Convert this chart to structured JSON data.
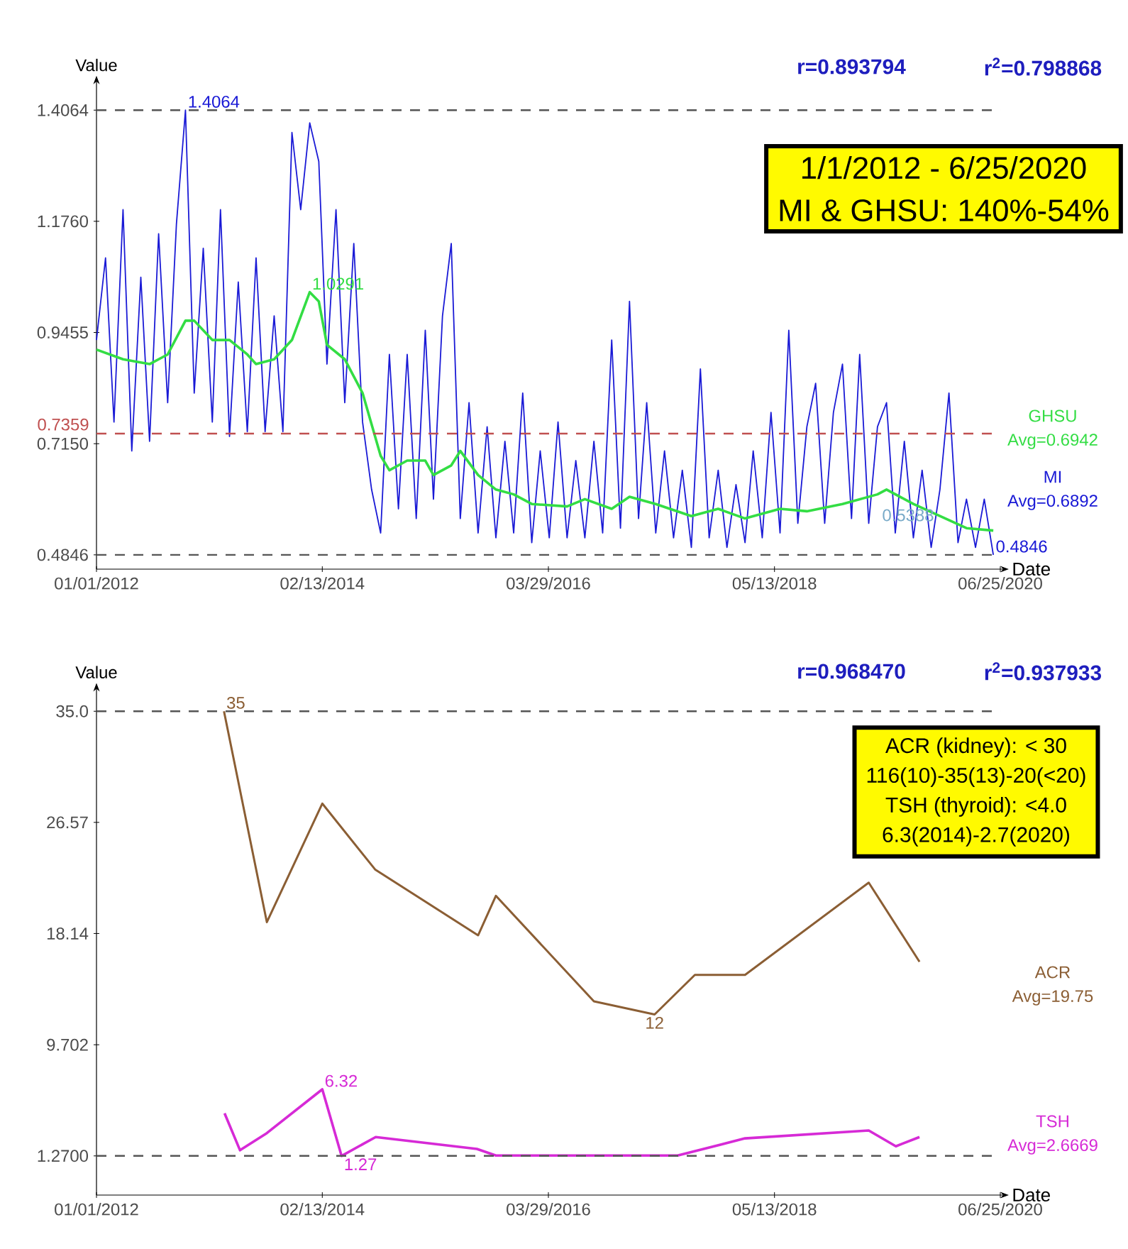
{
  "chart_data": [
    {
      "type": "line",
      "ylabel": "Value",
      "xlabel": "Date",
      "legend": false,
      "xlim": [
        "2012-01-01",
        "2020-06-25"
      ],
      "ylim": [
        0.455,
        1.46
      ],
      "xticks": [
        {
          "value": "2012-01-01",
          "label": "01/01/2012"
        },
        {
          "value": "2014-02-13",
          "label": "02/13/2014"
        },
        {
          "value": "2016-03-29",
          "label": "03/29/2016"
        },
        {
          "value": "2018-05-13",
          "label": "05/13/2018"
        },
        {
          "value": "2020-06-25",
          "label": "06/25/2020"
        }
      ],
      "yticks": [
        0.4846,
        {
          "value": 0.715,
          "label": "0.7150"
        },
        0.9455,
        {
          "value": 1.176,
          "label": "1.1760"
        },
        1.4064
      ],
      "series": [
        {
          "name": "MI",
          "color": "#1a1ad6",
          "x": [
            "2012-01",
            "2012-02",
            "2012-03",
            "2012-04",
            "2012-05",
            "2012-06",
            "2012-07",
            "2012-08",
            "2012-09",
            "2012-10",
            "2012-11",
            "2012-12",
            "2013-01",
            "2013-02",
            "2013-03",
            "2013-04",
            "2013-05",
            "2013-06",
            "2013-07",
            "2013-08",
            "2013-09",
            "2013-10",
            "2013-11",
            "2013-12",
            "2014-01",
            "2014-02",
            "2014-03",
            "2014-04",
            "2014-05",
            "2014-06",
            "2014-07",
            "2014-08",
            "2014-09",
            "2014-10",
            "2014-11",
            "2014-12",
            "2015-01",
            "2015-02",
            "2015-03",
            "2015-04",
            "2015-05",
            "2015-06",
            "2015-07",
            "2015-08",
            "2015-09",
            "2015-10",
            "2015-11",
            "2015-12",
            "2016-01",
            "2016-02",
            "2016-03",
            "2016-04",
            "2016-05",
            "2016-06",
            "2016-07",
            "2016-08",
            "2016-09",
            "2016-10",
            "2016-11",
            "2016-12",
            "2017-01",
            "2017-02",
            "2017-03",
            "2017-04",
            "2017-05",
            "2017-06",
            "2017-07",
            "2017-08",
            "2017-09",
            "2017-10",
            "2017-11",
            "2017-12",
            "2018-01",
            "2018-02",
            "2018-03",
            "2018-04",
            "2018-05",
            "2018-06",
            "2018-07",
            "2018-08",
            "2018-09",
            "2018-10",
            "2018-11",
            "2018-12",
            "2019-01",
            "2019-02",
            "2019-03",
            "2019-04",
            "2019-05",
            "2019-06",
            "2019-07",
            "2019-08",
            "2019-09",
            "2019-10",
            "2019-11",
            "2019-12",
            "2020-01",
            "2020-02",
            "2020-03",
            "2020-04",
            "2020-05",
            "2020-06"
          ],
          "values": [
            0.93,
            1.1,
            0.76,
            1.2,
            0.7,
            1.06,
            0.72,
            1.15,
            0.8,
            1.17,
            1.4064,
            0.82,
            1.12,
            0.76,
            1.2,
            0.73,
            1.05,
            0.74,
            1.1,
            0.74,
            0.98,
            0.74,
            1.36,
            1.2,
            1.38,
            1.3,
            0.88,
            1.2,
            0.8,
            1.13,
            0.76,
            0.62,
            0.53,
            0.9,
            0.58,
            0.9,
            0.56,
            0.95,
            0.6,
            0.98,
            1.13,
            0.56,
            0.8,
            0.53,
            0.75,
            0.52,
            0.72,
            0.53,
            0.82,
            0.51,
            0.7,
            0.52,
            0.76,
            0.52,
            0.68,
            0.52,
            0.72,
            0.53,
            0.93,
            0.54,
            1.01,
            0.56,
            0.8,
            0.53,
            0.7,
            0.52,
            0.66,
            0.5,
            0.87,
            0.52,
            0.66,
            0.5,
            0.63,
            0.51,
            0.7,
            0.52,
            0.78,
            0.53,
            0.95,
            0.55,
            0.75,
            0.84,
            0.55,
            0.78,
            0.88,
            0.56,
            0.9,
            0.55,
            0.75,
            0.8,
            0.53,
            0.72,
            0.52,
            0.66,
            0.5,
            0.62,
            0.82,
            0.51,
            0.6,
            0.5,
            0.6,
            0.4846
          ]
        },
        {
          "name": "GHSU",
          "color": "#33dd44",
          "x": [
            "2012-01",
            "2012-04",
            "2012-07",
            "2012-09",
            "2012-11",
            "2012-12",
            "2013-02",
            "2013-04",
            "2013-06",
            "2013-07",
            "2013-09",
            "2013-11",
            "2014-01",
            "2014-02",
            "2014-03",
            "2014-05",
            "2014-07",
            "2014-09",
            "2014-10",
            "2014-12",
            "2015-02",
            "2015-03",
            "2015-05",
            "2015-06",
            "2015-08",
            "2015-10",
            "2015-12",
            "2016-02",
            "2016-06",
            "2016-08",
            "2016-11",
            "2017-01",
            "2017-04",
            "2017-08",
            "2017-11",
            "2018-02",
            "2018-06",
            "2018-09",
            "2019-01",
            "2019-05",
            "2019-06",
            "2019-09",
            "2019-12",
            "2020-03",
            "2020-06"
          ],
          "values": [
            0.91,
            0.89,
            0.88,
            0.9,
            0.97,
            0.97,
            0.93,
            0.93,
            0.9,
            0.88,
            0.89,
            0.93,
            1.0291,
            1.01,
            0.92,
            0.89,
            0.82,
            0.69,
            0.66,
            0.68,
            0.68,
            0.65,
            0.67,
            0.7,
            0.65,
            0.62,
            0.61,
            0.59,
            0.585,
            0.6,
            0.58,
            0.605,
            0.59,
            0.565,
            0.58,
            0.56,
            0.58,
            0.575,
            0.59,
            0.61,
            0.62,
            0.59,
            0.565,
            0.54,
            0.535
          ]
        }
      ],
      "ref_lines": [
        {
          "axis": "y",
          "value": 1.4064,
          "color": "#555555",
          "line_style": "dashed"
        },
        {
          "axis": "y",
          "value": 0.7359,
          "label": "0.7359",
          "color": "#c05050",
          "line_style": "dashed"
        },
        {
          "axis": "y",
          "value": 0.4846,
          "color": "#555555",
          "line_style": "dashed"
        }
      ],
      "annotations": [
        "r=0.893794",
        "r$^{2}$=0.798868",
        "1/1/2012 - 6/25/2020",
        "MI & GHSU: 140%-54%",
        "Avg=0.6942",
        "Avg=0.6892",
        {
          "text": "1.4064",
          "x": "2012-11",
          "y": 1.4064
        },
        {
          "text": "1.0291",
          "x": "2014-01",
          "y": 1.0291
        },
        "0.5388",
        {
          "text": "0.4846",
          "x": "2020-06",
          "y": 0.4846
        }
      ]
    },
    {
      "type": "line",
      "ylabel": "Value",
      "xlabel": "Date",
      "legend": false,
      "xlim": [
        "2012-01-01",
        "2020-06-25"
      ],
      "ylim": [
        -1.7,
        36.5
      ],
      "xticks": [
        {
          "value": "2012-01-01",
          "label": "01/01/2012"
        },
        {
          "value": "2014-02-13",
          "label": "02/13/2014"
        },
        {
          "value": "2016-03-29",
          "label": "03/29/2016"
        },
        {
          "value": "2018-05-13",
          "label": "05/13/2018"
        },
        {
          "value": "2020-06-25",
          "label": "06/25/2020"
        }
      ],
      "yticks": [
        {
          "value": 1.27,
          "label": "1.2700"
        },
        9.702,
        18.14,
        26.57,
        {
          "value": 35,
          "label": "35.0"
        }
      ],
      "series": [
        {
          "name": "ACR",
          "color": "#8b5e34",
          "x": [
            "2013-03-13",
            "2013-08-07",
            "2014-02-13",
            "2014-08-13",
            "2015-08-01",
            "2015-10-01",
            "2016-09-01",
            "2017-03-28",
            "2017-08-13",
            "2018-02-01",
            "2019-04-01",
            "2019-09-22"
          ],
          "values": [
            35,
            19,
            28,
            23,
            18,
            21,
            13,
            12,
            15,
            15,
            22,
            16
          ]
        },
        {
          "name": "TSH",
          "color": "#d62ad6",
          "x": [
            "2013-03-15",
            "2013-05-07",
            "2013-08-07",
            "2014-02-13",
            "2014-04-20",
            "2014-08-15",
            "2015-07-28",
            "2015-10-01",
            "2017-06-15",
            "2018-02-01",
            "2019-04-01",
            "2019-07-03",
            "2019-09-22"
          ],
          "values": [
            4.5,
            1.7,
            3.0,
            6.32,
            1.27,
            2.7,
            1.8,
            1.3,
            1.3,
            2.6,
            3.2,
            2.0,
            2.7
          ]
        }
      ],
      "ref_lines": [
        {
          "axis": "y",
          "value": 35,
          "color": "#555555",
          "line_style": "dashed"
        },
        {
          "axis": "y",
          "value": 1.27,
          "color": "#555555",
          "line_style": "dashed"
        }
      ],
      "annotations": [
        "r=0.968470",
        "r$^{2}$=0.937933",
        "ACR (kidney): < 30",
        "116(10)-35(13)-20(<20)",
        "TSH (thyroid): <4.0",
        "6.3(2014)-2.7(2020)",
        "Avg=19.75",
        "Avg=2.6669",
        {
          "text": "35",
          "x": "2013-03-13",
          "y": 35
        },
        {
          "text": "12",
          "x": "2017-03-28",
          "y": 12
        },
        {
          "text": "6.32",
          "x": "2014-02-13",
          "y": 6.32
        },
        {
          "text": "1.27",
          "x": "2014-04-20",
          "y": 1.27
        }
      ]
    }
  ]
}
